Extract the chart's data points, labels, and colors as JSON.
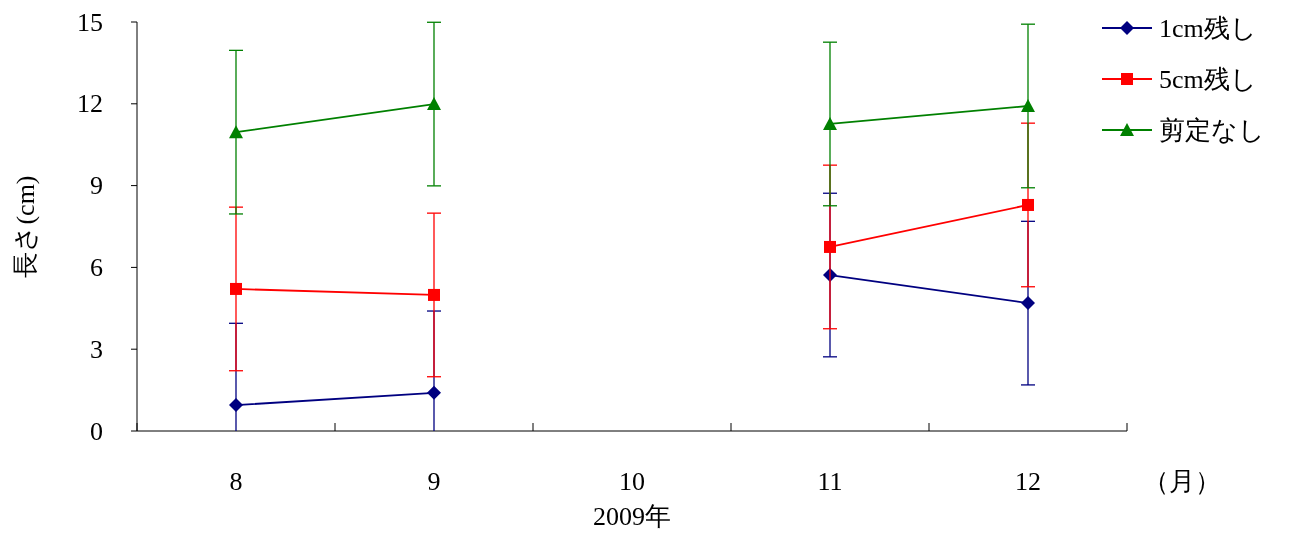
{
  "chart_data": {
    "type": "line",
    "ylabel": "長さ(cm)",
    "xlabel": "2009年",
    "annotations": [
      "（月）"
    ],
    "categories": [
      "8",
      "9",
      "10",
      "11",
      "12"
    ],
    "ylim": [
      0,
      15
    ],
    "yticks": [
      0,
      3,
      6,
      9,
      12,
      15
    ],
    "grid": false,
    "legend": "top right",
    "series": [
      {
        "name": "1cm残し",
        "color": "#000080",
        "marker": "diamond",
        "values": [
          0.95,
          1.4,
          null,
          5.72,
          4.69
        ],
        "errors": [
          [
            0,
            3.95
          ],
          [
            0,
            4.4
          ],
          null,
          3.0,
          3.0
        ]
      },
      {
        "name": "5cm残し",
        "color": "#ff0000",
        "marker": "square",
        "values": [
          5.21,
          4.99,
          null,
          6.75,
          8.29
        ],
        "errors": [
          3.0,
          3.0,
          null,
          3.0,
          3.0
        ]
      },
      {
        "name": "剪定なし",
        "color": "#008000",
        "marker": "triangle",
        "values": [
          10.96,
          11.99,
          null,
          11.26,
          11.92
        ],
        "errors": [
          3.0,
          3.0,
          null,
          3.0,
          3.0
        ]
      }
    ]
  }
}
